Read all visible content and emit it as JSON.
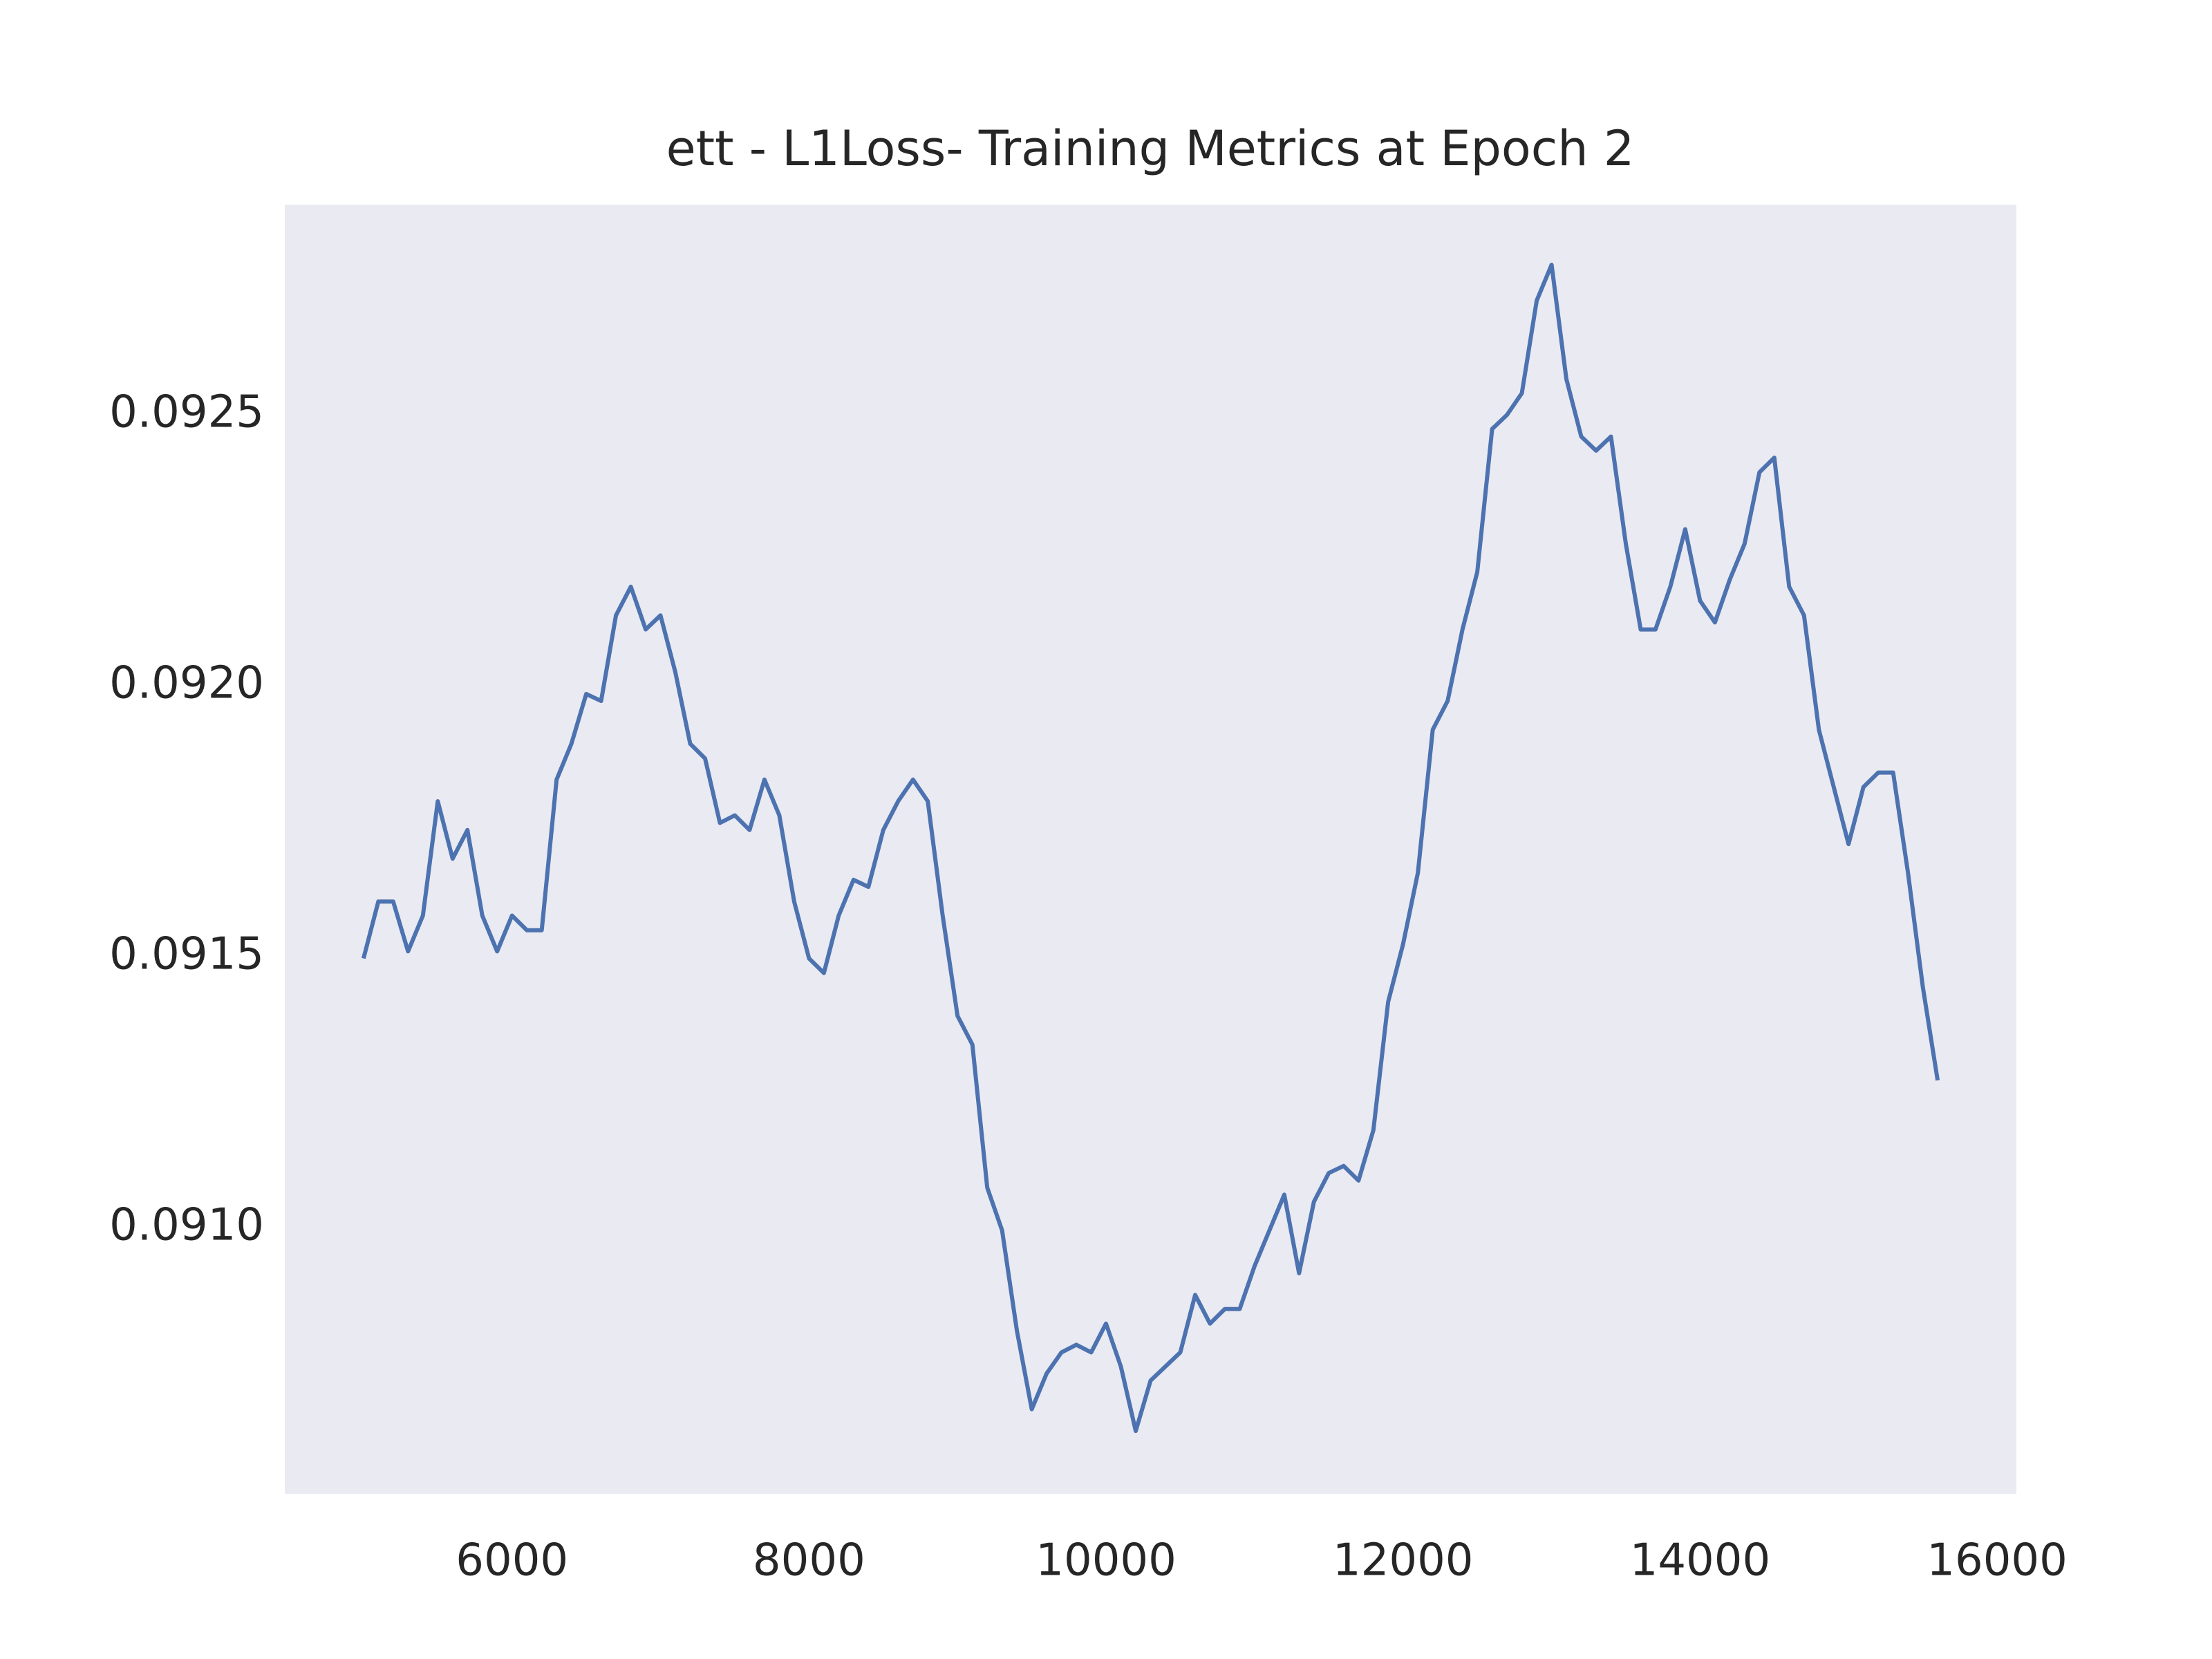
{
  "chart_data": {
    "type": "line",
    "title": "ett - L1Loss- Training Metrics at Epoch 2",
    "x": [
      5000,
      5100,
      5200,
      5300,
      5400,
      5500,
      5600,
      5700,
      5800,
      5900,
      6000,
      6100,
      6200,
      6300,
      6400,
      6500,
      6600,
      6700,
      6800,
      6900,
      7000,
      7100,
      7200,
      7300,
      7400,
      7500,
      7600,
      7700,
      7800,
      7900,
      8000,
      8100,
      8200,
      8300,
      8400,
      8500,
      8600,
      8700,
      8800,
      8900,
      9000,
      9100,
      9200,
      9300,
      9400,
      9500,
      9600,
      9700,
      9800,
      9900,
      10000,
      10100,
      10200,
      10300,
      10400,
      10500,
      10600,
      10700,
      10800,
      10900,
      11000,
      11100,
      11200,
      11300,
      11400,
      11500,
      11600,
      11700,
      11800,
      11900,
      12000,
      12100,
      12200,
      12300,
      12400,
      12500,
      12600,
      12700,
      12800,
      12900,
      13000,
      13100,
      13200,
      13300,
      13400,
      13500,
      13600,
      13700,
      13800,
      13900,
      14000,
      14100,
      14200,
      14300,
      14400,
      14500,
      14600,
      14700,
      14800,
      14900,
      15000,
      15100,
      15200,
      15300,
      15400,
      15500,
      15600
    ],
    "series": [
      {
        "color": "#4c72b0",
        "values": [
          0.091497,
          0.091602,
          0.091602,
          0.09151,
          0.091576,
          0.091787,
          0.091681,
          0.091734,
          0.091576,
          0.09151,
          0.091576,
          0.091549,
          0.091549,
          0.091827,
          0.091893,
          0.091985,
          0.091972,
          0.09213,
          0.092183,
          0.092104,
          0.09213,
          0.092025,
          0.091893,
          0.091866,
          0.091747,
          0.091761,
          0.091734,
          0.091827,
          0.091761,
          0.091602,
          0.091497,
          0.09147,
          0.091576,
          0.091642,
          0.091629,
          0.091734,
          0.091787,
          0.091827,
          0.091787,
          0.091576,
          0.091391,
          0.091338,
          0.091074,
          0.090995,
          0.09081,
          0.090665,
          0.090731,
          0.09077,
          0.090784,
          0.09077,
          0.090823,
          0.090744,
          0.090625,
          0.090718,
          0.090744,
          0.09077,
          0.090876,
          0.090823,
          0.09085,
          0.09085,
          0.090929,
          0.090995,
          0.091061,
          0.090916,
          0.091048,
          0.091101,
          0.091114,
          0.091087,
          0.09118,
          0.091417,
          0.091523,
          0.091655,
          0.091919,
          0.091972,
          0.092104,
          0.09221,
          0.092474,
          0.0925,
          0.09254,
          0.092711,
          0.092777,
          0.092566,
          0.09246,
          0.092434,
          0.09246,
          0.092262,
          0.092104,
          0.092104,
          0.092183,
          0.092289,
          0.092157,
          0.092117,
          0.092196,
          0.092262,
          0.092394,
          0.092421,
          0.092183,
          0.09213,
          0.091919,
          0.091813,
          0.091708,
          0.091813,
          0.09184,
          0.09184,
          0.091655,
          0.091444,
          0.091272
        ]
      }
    ],
    "xlim": [
      4470,
      16130
    ],
    "ylim": [
      0.090509,
      0.092888
    ],
    "xticks": [
      6000,
      8000,
      10000,
      12000,
      14000,
      16000
    ],
    "yticks": [
      {
        "value": 0.091,
        "label": "0.0910"
      },
      0.0915,
      {
        "value": 0.092,
        "label": "0.0920"
      },
      0.0925
    ],
    "grid": false
  }
}
